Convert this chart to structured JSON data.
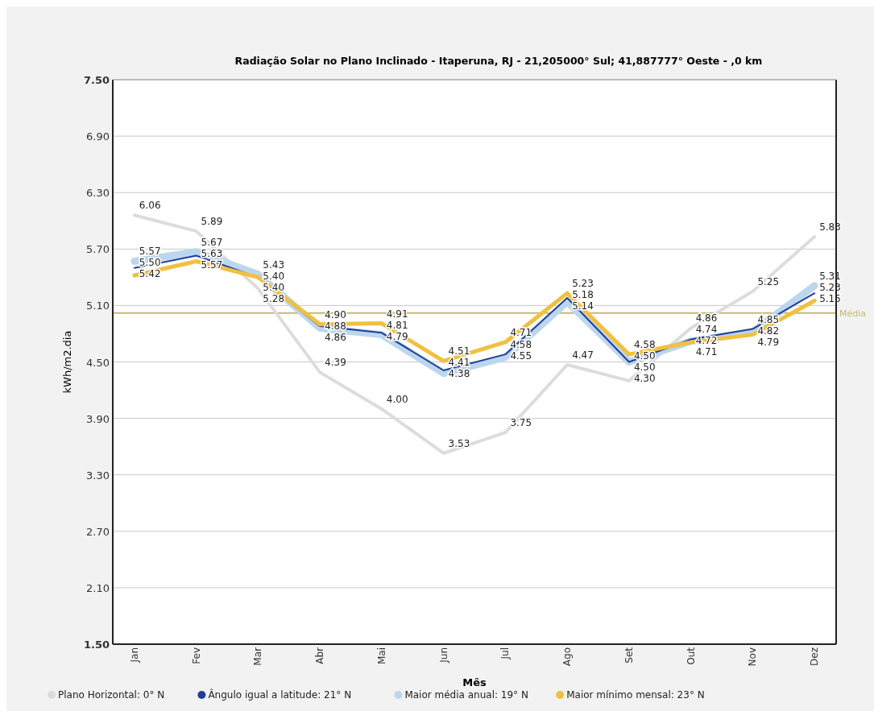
{
  "chart_data": {
    "type": "line",
    "title": "Radiação Solar no Plano Inclinado - Itaperuna, RJ -  21,205000° Sul;  41,887777° Oeste - ,0 km",
    "xlabel": "Mês",
    "ylabel": "kWh/m2.dia",
    "categories": [
      "Jan",
      "Fev",
      "Mar",
      "Abr",
      "Mai",
      "Jun",
      "Jul",
      "Ago",
      "Set",
      "Out",
      "Nov",
      "Dez"
    ],
    "series": [
      {
        "name": "Plano Horizontal: 0° N",
        "color": "#dcdcdc",
        "values": [
          6.06,
          5.89,
          5.28,
          4.39,
          4.0,
          3.53,
          3.75,
          4.47,
          4.3,
          4.86,
          5.25,
          5.83
        ],
        "value_labels": [
          "6.06",
          "5.89",
          "5.28",
          "4.39",
          "4.00",
          "3.53",
          "3.75",
          "4.47",
          "4.30",
          "4.86",
          "5.25",
          "5.83"
        ]
      },
      {
        "name": "Ângulo igual a latitude: 21° N",
        "color": "#1f3f9a",
        "values": [
          5.5,
          5.63,
          5.4,
          4.88,
          4.81,
          4.41,
          4.58,
          5.18,
          4.5,
          4.74,
          4.85,
          5.23
        ],
        "value_labels": [
          "5.50",
          "5.63",
          "5.40",
          "4.88",
          "4.81",
          "4.41",
          "4.58",
          "5.18",
          "4.50",
          "4.74",
          "4.85",
          "5.23"
        ]
      },
      {
        "name": "Maior média anual: 19° N",
        "color": "#bcd6ee",
        "values": [
          5.57,
          5.67,
          5.43,
          4.86,
          4.79,
          4.38,
          4.55,
          5.14,
          4.5,
          4.72,
          4.82,
          5.31
        ],
        "value_labels": [
          "5.57",
          "5.67",
          "5.43",
          "4.86",
          "4.79",
          "4.38",
          "4.55",
          "5.14",
          "4.50",
          "4.72",
          "4.82",
          "5.31"
        ]
      },
      {
        "name": "Maior mínimo mensal: 23° N",
        "color": "#f0c040",
        "values": [
          5.42,
          5.57,
          5.4,
          4.9,
          4.91,
          4.51,
          4.71,
          5.23,
          4.58,
          4.71,
          4.79,
          5.15
        ],
        "value_labels": [
          "5.42",
          "5.57",
          "5.40",
          "4.90",
          "4.91",
          "4.51",
          "4.71",
          "5.23",
          "4.58",
          "4.71",
          "4.79",
          "5.15"
        ]
      }
    ],
    "ylim": [
      1.5,
      7.5
    ],
    "yticks": [
      "1.50",
      "2.10",
      "2.70",
      "3.30",
      "3.90",
      "4.50",
      "5.10",
      "5.70",
      "6.30",
      "6.90",
      "7.50"
    ],
    "ref_lines": [
      {
        "axis": "y",
        "value": 5.02,
        "label": "Média",
        "color": "#c8b870"
      }
    ],
    "grid": "y",
    "legend": "bottom",
    "marker": "none",
    "line_style": "solid"
  }
}
